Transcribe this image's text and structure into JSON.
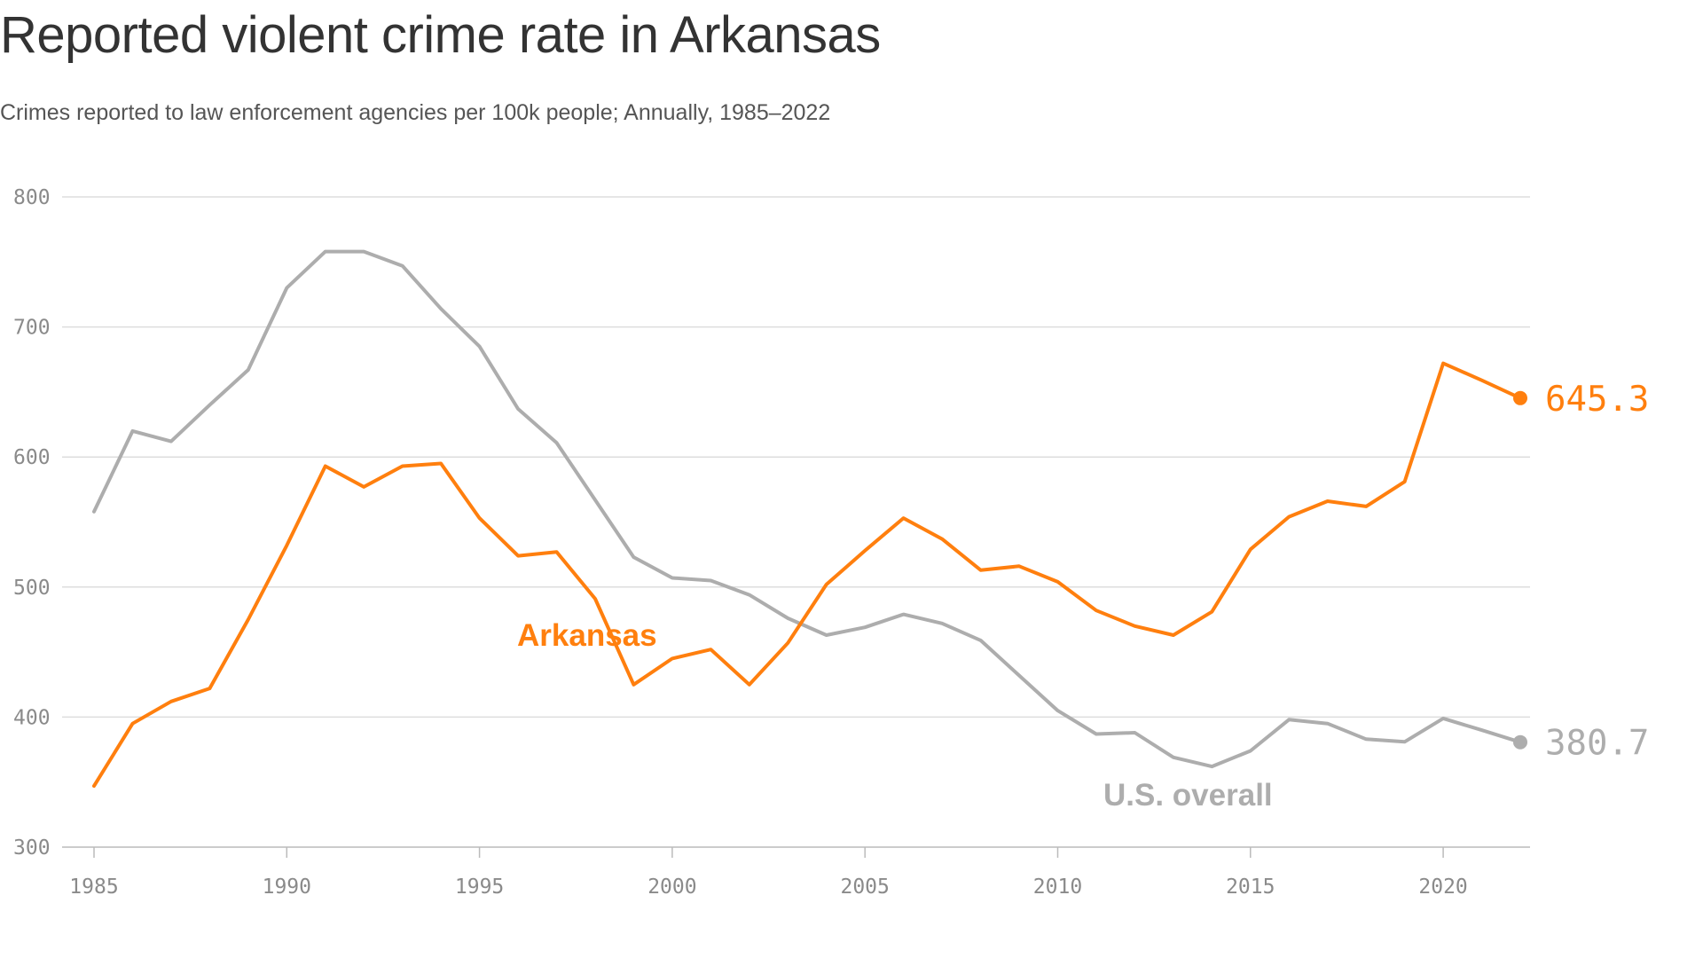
{
  "title": "Reported violent crime rate in Arkansas",
  "subtitle": "Crimes reported to law enforcement agencies per 100k people; Annually, 1985–2022",
  "colors": {
    "arkansas": "#FF7F0E",
    "us": "#ADADAD",
    "grid": "#DDDDDD",
    "axis": "#BBBBBB"
  },
  "chart_data": {
    "type": "line",
    "title": "Reported violent crime rate in Arkansas",
    "subtitle": "Crimes reported to law enforcement agencies per 100k people; Annually, 1985–2022",
    "xlabel": "",
    "ylabel": "",
    "xlim": [
      1985,
      2022
    ],
    "ylim": [
      300,
      800
    ],
    "xticks": [
      1985,
      1990,
      1995,
      2000,
      2005,
      2010,
      2015,
      2020
    ],
    "yticks": [
      300,
      400,
      500,
      600,
      700,
      800
    ],
    "grid": true,
    "x": [
      1985,
      1986,
      1987,
      1988,
      1989,
      1990,
      1991,
      1992,
      1993,
      1994,
      1995,
      1996,
      1997,
      1998,
      1999,
      2000,
      2001,
      2002,
      2003,
      2004,
      2005,
      2006,
      2007,
      2008,
      2009,
      2010,
      2011,
      2012,
      2013,
      2014,
      2015,
      2016,
      2017,
      2018,
      2019,
      2020,
      2021,
      2022
    ],
    "series": [
      {
        "name": "Arkansas",
        "color": "#FF7F0E",
        "end_label": "645.3",
        "values": [
          347,
          395,
          412,
          422,
          475,
          532,
          593,
          577,
          593,
          595,
          553,
          524,
          527,
          491,
          425,
          445,
          452,
          425,
          457,
          502,
          528,
          553,
          537,
          513,
          516,
          504,
          482,
          470,
          463,
          481,
          529,
          554,
          566,
          562,
          581,
          672,
          659,
          645.3
        ]
      },
      {
        "name": "U.S. overall",
        "color": "#ADADAD",
        "end_label": "380.7",
        "values": [
          558,
          620,
          612,
          640,
          667,
          730,
          758,
          758,
          747,
          714,
          685,
          637,
          611,
          567,
          523,
          507,
          505,
          494,
          476,
          463,
          469,
          479,
          472,
          459,
          432,
          405,
          387,
          388,
          369,
          362,
          374,
          398,
          395,
          383,
          381,
          399,
          390,
          380.7
        ]
      }
    ]
  }
}
